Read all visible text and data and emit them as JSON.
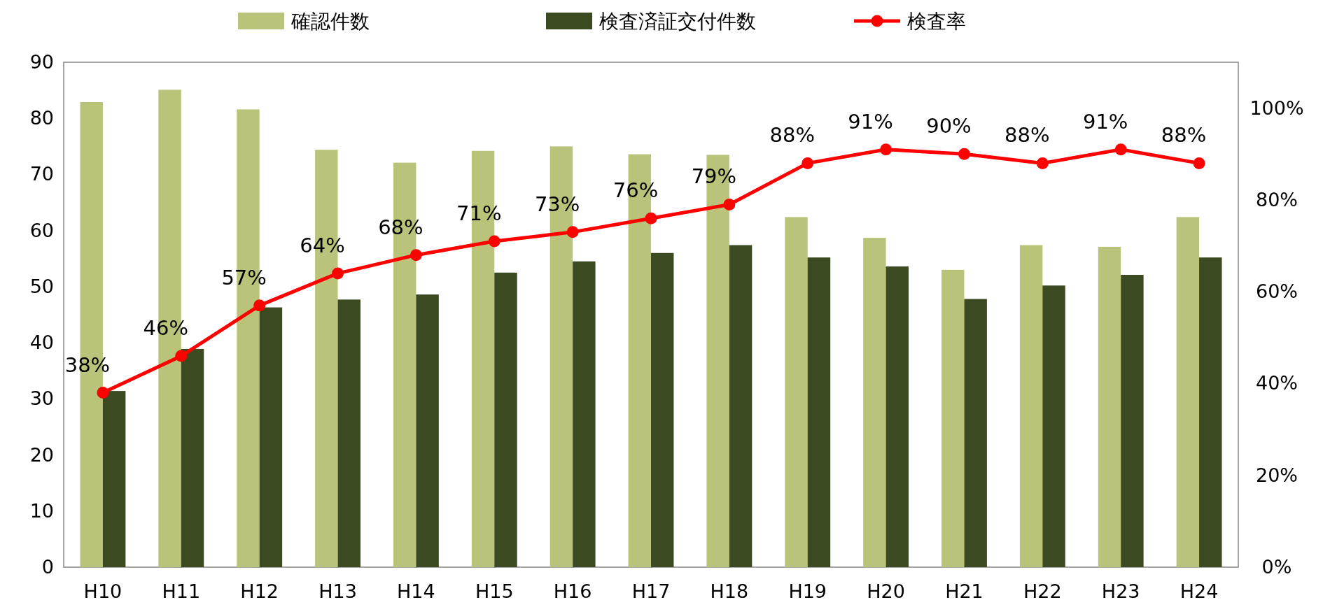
{
  "chart_data": {
    "type": "bar",
    "categories": [
      "H10",
      "H11",
      "H12",
      "H13",
      "H14",
      "H15",
      "H16",
      "H17",
      "H18",
      "H19",
      "H20",
      "H21",
      "H22",
      "H23",
      "H24"
    ],
    "series": [
      {
        "name": "確認件数",
        "color": "#b9c47a",
        "values": [
          82.9,
          85.1,
          81.6,
          74.4,
          72.1,
          74.2,
          75.0,
          73.6,
          73.5,
          62.4,
          58.7,
          53.0,
          57.4,
          57.1,
          62.4
        ]
      },
      {
        "name": "検査済証交付件数",
        "color": "#3b4a21",
        "values": [
          31.4,
          38.9,
          46.3,
          47.7,
          48.6,
          52.5,
          54.5,
          56.0,
          57.4,
          55.2,
          53.6,
          47.8,
          50.2,
          52.1,
          55.2
        ]
      },
      {
        "name": "検査率",
        "type": "line",
        "axis": "y2",
        "color": "#ff0000",
        "marker": "circle",
        "values": [
          38,
          46,
          57,
          64,
          68,
          71,
          73,
          76,
          79,
          88,
          91,
          90,
          88,
          91,
          88
        ],
        "value_labels": [
          "38%",
          "46%",
          "57%",
          "64%",
          "68%",
          "71%",
          "73%",
          "76%",
          "79%",
          "88%",
          "91%",
          "90%",
          "88%",
          "91%",
          "88%"
        ]
      }
    ],
    "ylim": [
      0,
      90
    ],
    "yticks": [
      0,
      10,
      20,
      30,
      40,
      50,
      60,
      70,
      80,
      90
    ],
    "y2lim": [
      0,
      110
    ],
    "y2ticks": [
      {
        "value": 0,
        "label": "0%"
      },
      {
        "value": 20,
        "label": "20%"
      },
      {
        "value": 40,
        "label": "40%"
      },
      {
        "value": 60,
        "label": "60%"
      },
      {
        "value": 80,
        "label": "80%"
      },
      {
        "value": 100,
        "label": "100%"
      }
    ],
    "grid": false,
    "legend": "top"
  }
}
